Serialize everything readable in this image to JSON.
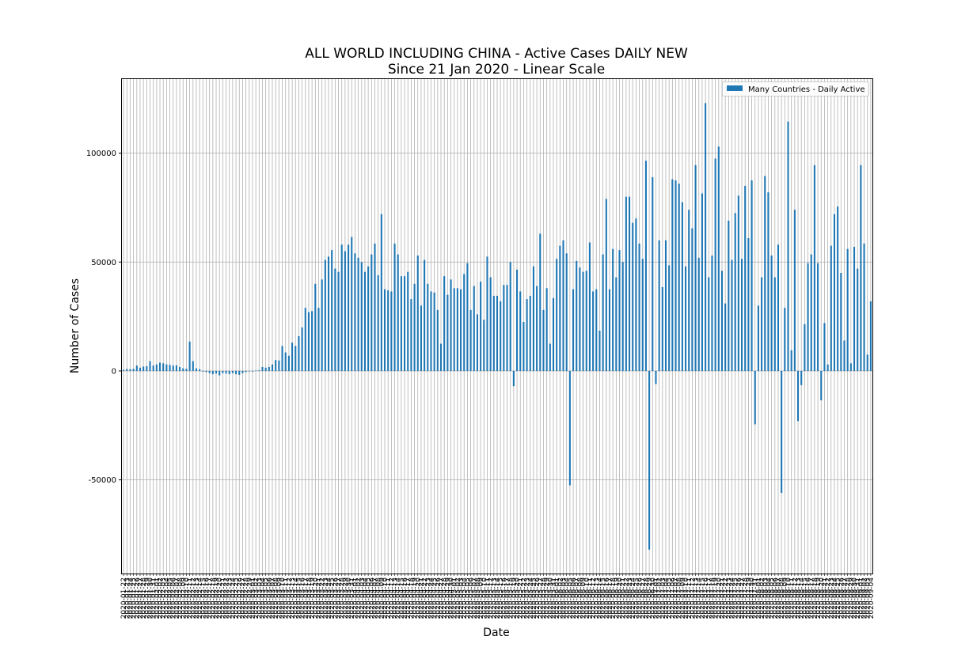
{
  "chart_data": {
    "type": "bar",
    "title": "ALL WORLD INCLUDING CHINA - Active Cases DAILY NEW",
    "subtitle": "Since 21 Jan 2020 - Linear Scale",
    "xlabel": "Date",
    "ylabel": "Number of Cases",
    "ylim": [
      -93000,
      134000
    ],
    "yticks": [
      -50000,
      0,
      50000,
      100000
    ],
    "grid": true,
    "legend_position": "top-right",
    "bar_color": "#1f77b4",
    "start_date": "2020-01-22",
    "date_label_step": 1,
    "series": [
      {
        "name": "Many Countries - Daily Active",
        "values": [
          500,
          900,
          800,
          1000,
          2500,
          1500,
          2000,
          2200,
          4500,
          2500,
          3000,
          3800,
          3500,
          3000,
          2800,
          2500,
          2600,
          1800,
          1200,
          1000,
          13500,
          4500,
          1200,
          800,
          -300,
          -500,
          -1000,
          -1500,
          -1200,
          -2000,
          -1000,
          -1200,
          -1500,
          -1000,
          -1500,
          -1800,
          -1000,
          -500,
          -200,
          -300,
          200,
          300,
          1800,
          1500,
          1800,
          3000,
          5000,
          4800,
          11500,
          8500,
          7000,
          13000,
          11500,
          16000,
          20000,
          29000,
          27000,
          27500,
          40000,
          29000,
          42000,
          51000,
          52500,
          55500,
          47000,
          45500,
          58000,
          55000,
          58000,
          61500,
          54000,
          52000,
          50000,
          45500,
          48000,
          53500,
          58500,
          44000,
          72000,
          37500,
          37000,
          36500,
          58500,
          53500,
          43500,
          43500,
          45500,
          33000,
          40000,
          53000,
          30000,
          51000,
          40000,
          36500,
          36000,
          28000,
          12500,
          43500,
          35000,
          42000,
          38000,
          38000,
          37500,
          44500,
          49500,
          28000,
          39000,
          26000,
          41000,
          23500,
          52500,
          43000,
          34500,
          34500,
          32000,
          39500,
          39500,
          50000,
          -7000,
          46500,
          36500,
          22500,
          33000,
          34500,
          48000,
          39000,
          63000,
          28000,
          38000,
          12500,
          33500,
          51500,
          57500,
          60000,
          54000,
          -52500,
          37500,
          50500,
          47500,
          45500,
          46000,
          59000,
          36500,
          37500,
          18500,
          53500,
          79000,
          37500,
          56000,
          43000,
          55500,
          50000,
          80000,
          80000,
          68000,
          70000,
          58500,
          51500,
          96500,
          -82000,
          89000,
          -6000,
          60000,
          38500,
          60000,
          48500,
          88000,
          87500,
          86000,
          77500,
          48000,
          74000,
          65500,
          94500,
          52000,
          81500,
          123000,
          43000,
          53000,
          97500,
          103000,
          46000,
          31000,
          69000,
          51000,
          72500,
          80500,
          51500,
          85000,
          61000,
          87500,
          -24500,
          30000,
          43000,
          89500,
          82000,
          53000,
          43000,
          58000,
          -56000,
          29000,
          114500,
          9500,
          74000,
          -23000,
          -6500,
          21500,
          49500,
          53500,
          94500,
          49500,
          -13500,
          22000,
          3000,
          57500,
          72000,
          75500,
          45000,
          14000,
          56000,
          3500,
          57000,
          47000,
          94500,
          58500,
          7500,
          32000
        ]
      }
    ]
  }
}
